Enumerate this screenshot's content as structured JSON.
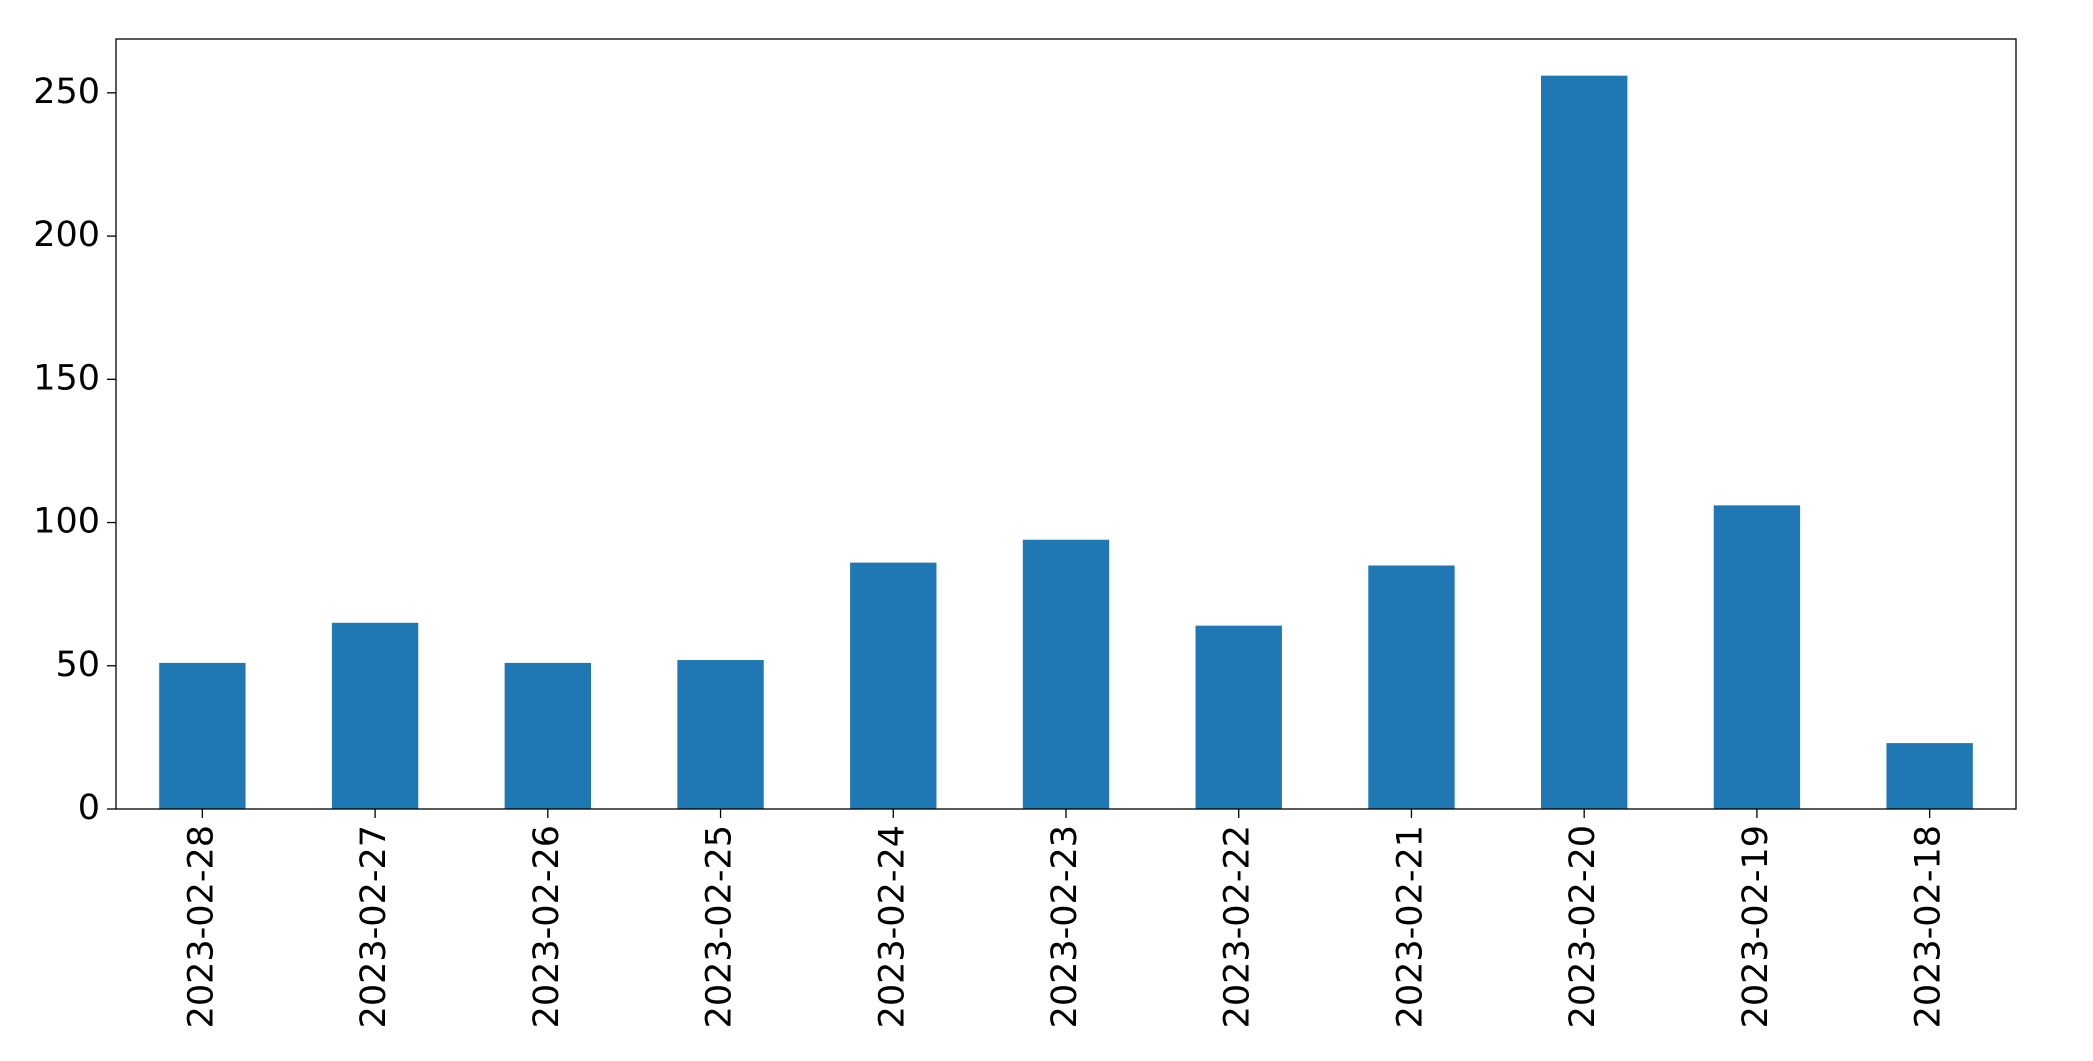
{
  "chart_data": {
    "type": "bar",
    "categories": [
      "2023-02-28",
      "2023-02-27",
      "2023-02-26",
      "2023-02-25",
      "2023-02-24",
      "2023-02-23",
      "2023-02-22",
      "2023-02-21",
      "2023-02-20",
      "2023-02-19",
      "2023-02-18"
    ],
    "values": [
      51,
      65,
      51,
      52,
      86,
      94,
      64,
      85,
      256,
      106,
      23
    ],
    "color": "#1f77b4",
    "ylim": [
      0,
      268.8
    ],
    "yticks": [
      0,
      50,
      100,
      150,
      200,
      250
    ],
    "grid": false
  }
}
